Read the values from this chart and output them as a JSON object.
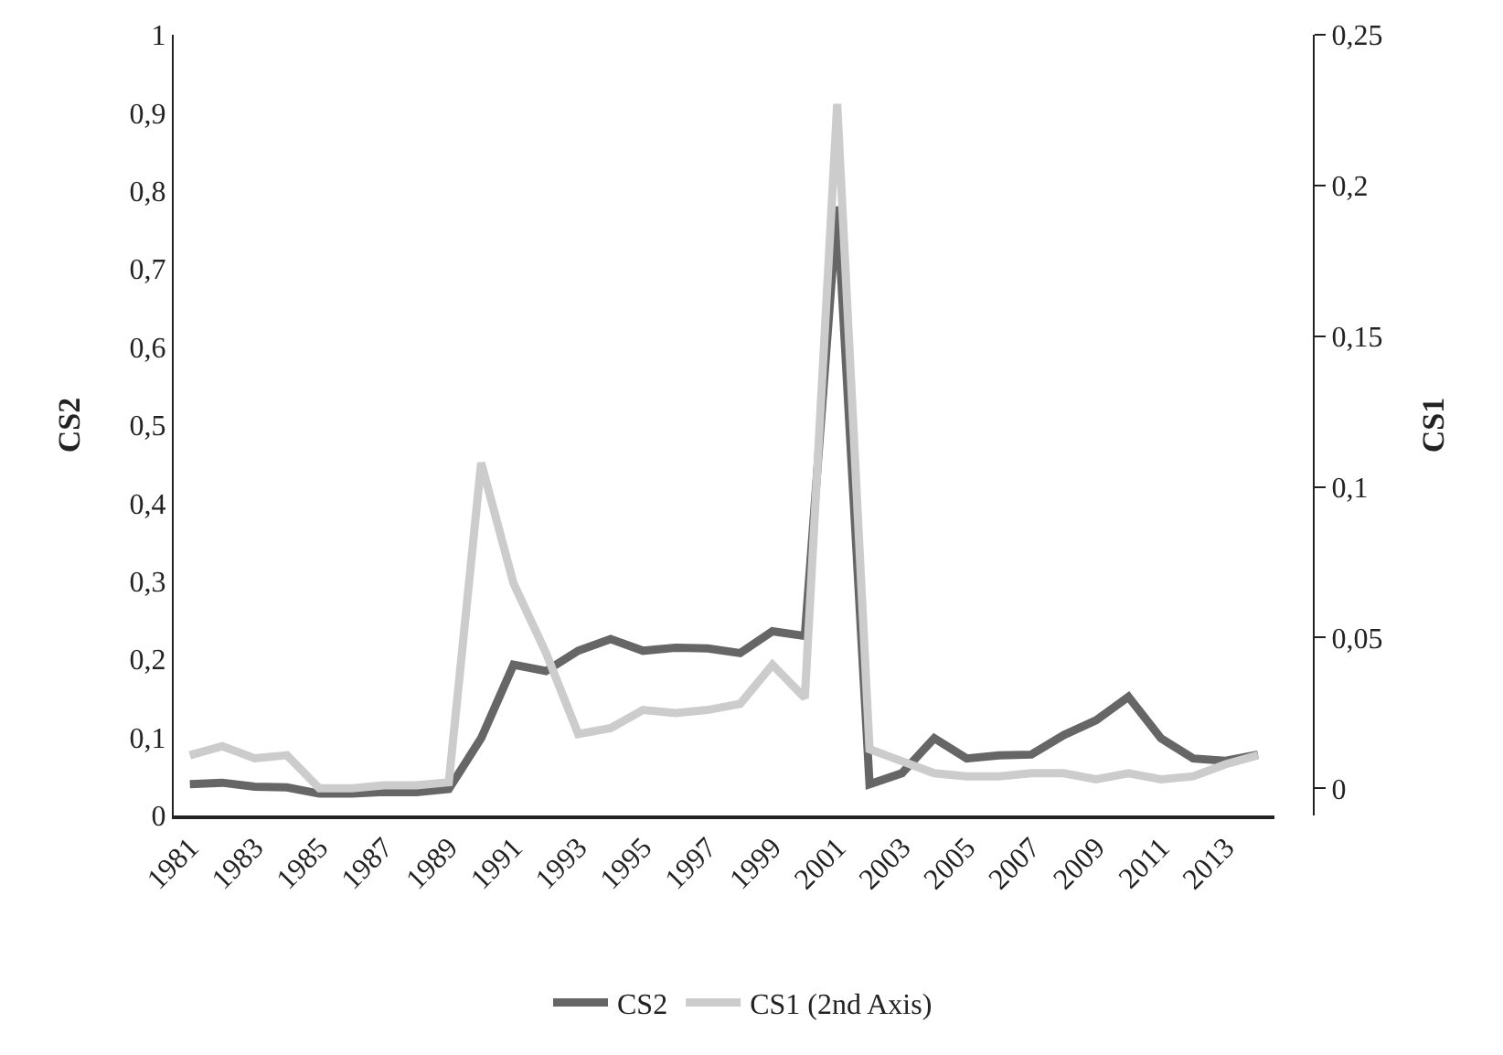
{
  "chart_data": {
    "type": "line",
    "categories": [
      "1981",
      null,
      "1983",
      null,
      "1985",
      null,
      "1987",
      null,
      "1989",
      null,
      "1991",
      null,
      "1993",
      null,
      "1995",
      null,
      "1997",
      null,
      "1999",
      null,
      "2001",
      null,
      "2003",
      null,
      "2005",
      null,
      "2007",
      null,
      "2009",
      null,
      "2011",
      null,
      "2013",
      null
    ],
    "series": [
      {
        "name": "CS2",
        "color": "#666666",
        "values": [
          0.04,
          0.042,
          0.037,
          0.036,
          0.028,
          0.028,
          0.03,
          0.03,
          0.034,
          0.099,
          0.193,
          0.185,
          0.211,
          0.226,
          0.211,
          0.215,
          0.214,
          0.208,
          0.236,
          0.23,
          0.78,
          0.04,
          0.054,
          0.099,
          0.073,
          0.077,
          0.078,
          0.103,
          0.122,
          0.152,
          0.099,
          0.073,
          0.07,
          0.078
        ]
      },
      {
        "name": "CS1 (2nd Axis)",
        "color": "#cccccc",
        "axis": "y2",
        "values": [
          0.011,
          0.014,
          0.01,
          0.011,
          0.0,
          0.0,
          0.001,
          0.001,
          0.002,
          0.108,
          0.068,
          0.045,
          0.018,
          0.02,
          0.026,
          0.025,
          0.026,
          0.028,
          0.041,
          0.03,
          0.227,
          0.013,
          0.009,
          0.005,
          0.004,
          0.004,
          0.005,
          0.005,
          0.003,
          0.005,
          0.003,
          0.004,
          0.008,
          0.011
        ]
      }
    ],
    "ylabel": "CS2",
    "y2label": "CS1",
    "ylim": [
      0,
      1
    ],
    "yticks": [
      0,
      {
        "value": 0.1,
        "label": "0,1"
      },
      {
        "value": 0.2,
        "label": "0,2"
      },
      {
        "value": 0.3,
        "label": "0,3"
      },
      {
        "value": 0.4,
        "label": "0,4"
      },
      {
        "value": 0.5,
        "label": "0,5"
      },
      {
        "value": 0.6,
        "label": "0,6"
      },
      {
        "value": 0.7,
        "label": "0,7"
      },
      {
        "value": 0.8,
        "label": "0,8"
      },
      {
        "value": 0.9,
        "label": "0,9"
      },
      1
    ],
    "y2lim": [
      -0.009,
      0.25
    ],
    "y2ticks": [
      0,
      {
        "value": 0.05,
        "label": "0,05"
      },
      {
        "value": 0.1,
        "label": "0,1"
      },
      {
        "value": 0.15,
        "label": "0,15"
      },
      {
        "value": 0.2,
        "label": "0,2"
      },
      {
        "value": 0.25,
        "label": "0,25"
      }
    ],
    "grid": false,
    "legend": "bottom",
    "marker": "none",
    "line_style": "solid"
  }
}
